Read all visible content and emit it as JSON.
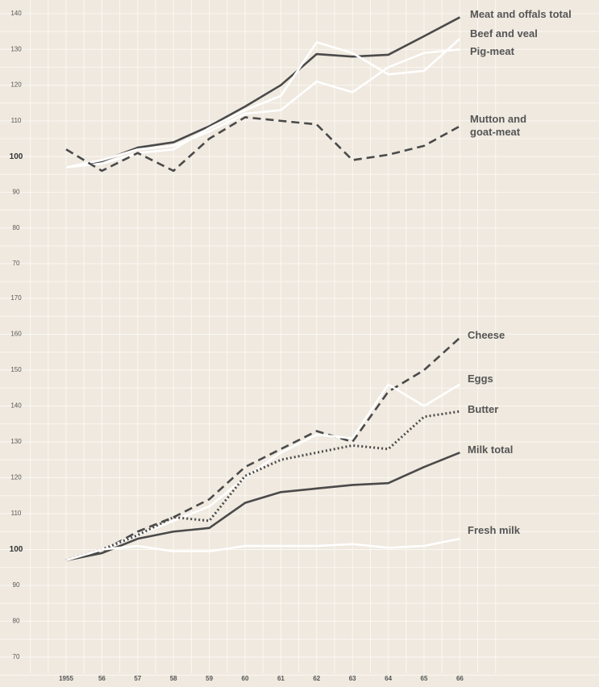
{
  "chart_data": [
    {
      "type": "line",
      "ylim": [
        70,
        140
      ],
      "yticks": [
        70,
        80,
        90,
        100,
        110,
        120,
        130,
        140
      ],
      "grid": true,
      "series": [
        {
          "name": "Meat and offals total",
          "color": "#4a4a4a",
          "dash": "solid",
          "values": [
            97,
            98.7,
            102.5,
            104,
            108.5,
            114,
            120,
            128.7,
            128,
            128.5,
            133.7,
            139
          ]
        },
        {
          "name": "Beef and veal",
          "color": "#ffffff",
          "dash": "solid",
          "values": [
            97,
            98,
            101,
            102,
            108,
            113,
            117,
            132,
            129,
            123,
            124,
            133
          ]
        },
        {
          "name": "Pig-meat",
          "color": "#ffffff",
          "dash": "solid",
          "values": [
            97,
            99,
            102,
            103,
            107,
            112,
            113,
            121,
            118,
            125,
            129,
            130
          ]
        },
        {
          "name": "Mutton and goat-meat",
          "color": "#4a4a4a",
          "dash": "dashed",
          "values": [
            102,
            96,
            101,
            96,
            105,
            111,
            110,
            109,
            99,
            100.5,
            103,
            108.5
          ]
        }
      ]
    },
    {
      "type": "line",
      "ylim": [
        70,
        170
      ],
      "yticks": [
        70,
        80,
        90,
        100,
        110,
        120,
        130,
        140,
        150,
        160,
        170
      ],
      "grid": true,
      "categories": [
        "1955",
        "56",
        "57",
        "58",
        "59",
        "60",
        "61",
        "62",
        "63",
        "64",
        "65",
        "66"
      ],
      "series": [
        {
          "name": "Cheese",
          "color": "#4a4a4a",
          "dash": "dashed",
          "values": [
            97,
            99.5,
            105,
            109,
            114,
            123,
            128,
            133,
            130,
            144,
            150,
            159
          ]
        },
        {
          "name": "Eggs",
          "color": "#ffffff",
          "dash": "solid",
          "values": [
            97,
            100,
            104,
            108,
            112,
            120,
            127,
            132,
            131,
            146,
            140,
            146
          ]
        },
        {
          "name": "Butter",
          "color": "#4a4a4a",
          "dash": "dotted",
          "values": [
            97,
            100,
            104,
            109,
            108,
            120.5,
            125,
            127,
            129,
            128,
            137,
            138.5
          ]
        },
        {
          "name": "Milk total",
          "color": "#4a4a4a",
          "dash": "solid",
          "values": [
            97,
            99,
            103,
            105,
            106,
            113,
            116,
            117,
            118,
            118.5,
            123,
            127
          ]
        },
        {
          "name": "Fresh milk",
          "color": "#ffffff",
          "dash": "solid",
          "values": [
            97,
            100,
            101,
            99.5,
            99.5,
            101,
            101,
            101,
            101.5,
            100.5,
            101,
            103
          ]
        }
      ]
    }
  ]
}
